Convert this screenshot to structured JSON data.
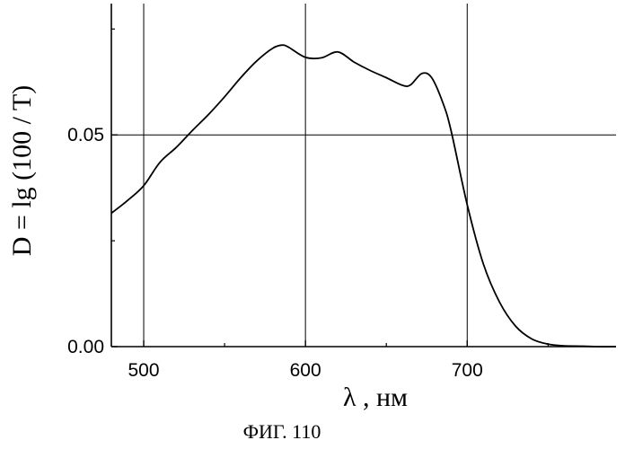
{
  "chart_data": {
    "type": "line",
    "xlabel": "λ , нм",
    "ylabel": "D = lg (100 / T)",
    "caption": "ФИГ. 110",
    "xlim": [
      480,
      792
    ],
    "ylim": [
      0,
      0.081
    ],
    "xticks": [
      500,
      600,
      700
    ],
    "xtick_labels": [
      "500",
      "600",
      "700"
    ],
    "yticks": [
      0.0,
      0.05
    ],
    "ytick_labels": [
      "0.00",
      "0.05"
    ],
    "grid": true,
    "series": [
      {
        "x": [
          480,
          490,
          500,
          510,
          520,
          530,
          540,
          550,
          560,
          570,
          580,
          586,
          590,
          600,
          610,
          620,
          630,
          640,
          650,
          660,
          665,
          672,
          678,
          685,
          690,
          700,
          710,
          720,
          730,
          740,
          750,
          760,
          770,
          780,
          792
        ],
        "y": [
          0.0315,
          0.0345,
          0.038,
          0.0435,
          0.047,
          0.051,
          0.0548,
          0.059,
          0.0635,
          0.0675,
          0.0705,
          0.0712,
          0.0706,
          0.0683,
          0.0682,
          0.0696,
          0.0672,
          0.0652,
          0.0635,
          0.0617,
          0.0618,
          0.0645,
          0.0635,
          0.0575,
          0.051,
          0.0335,
          0.0195,
          0.0105,
          0.0048,
          0.0018,
          0.0006,
          0.0002,
          0.0001,
          0.0,
          0.0
        ]
      }
    ]
  }
}
